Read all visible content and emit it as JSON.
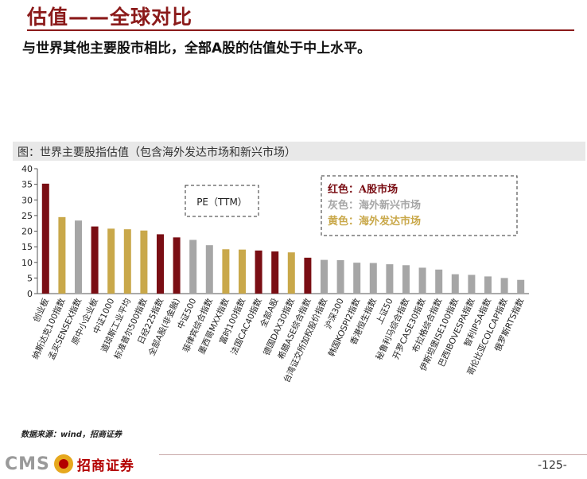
{
  "page": {
    "title": "估值——全球对比",
    "subtitle": "与世界其他主要股市相比，全部A股的估值处于中上水平。",
    "source": "数据来源：wind，招商证券",
    "page_number": "-125-",
    "logo_text": "CMS",
    "logo_name": "招商证券"
  },
  "colors": {
    "title": "#8B1A1A",
    "a_share": "#7A0E14",
    "emerging": "#A6A6A6",
    "developed": "#C9A84A"
  },
  "chart_data": {
    "type": "bar",
    "title": "图：世界主要股指估值（包含海外发达市场和新兴市场）",
    "annotation": "PE（TTM）",
    "ylim": [
      0,
      40
    ],
    "yticks": [
      0,
      5,
      10,
      15,
      20,
      25,
      30,
      35,
      40
    ],
    "legend": [
      {
        "label": "红色：A股市场",
        "group": "a_share"
      },
      {
        "label": "灰色：海外新兴市场",
        "group": "emerging"
      },
      {
        "label": "黄色：海外发达市场",
        "group": "developed"
      }
    ],
    "categories": [
      "创业板",
      "纳斯达克100指数",
      "孟买SENSEX指数",
      "原中小企业板",
      "中证1000",
      "道琼斯工业平均",
      "标准普尔500指数",
      "日经225指数",
      "全部A股(非金融)",
      "中证500",
      "菲律宾综合指数",
      "墨西哥MXX指数",
      "富时100指数",
      "法国CAC40指数",
      "全部A股",
      "德国DAX30指数",
      "希腊ASE综合指数",
      "台湾证交所加权股价指数",
      "沪深300",
      "韩国KOSPI2指数",
      "香港恒生指数",
      "上证50",
      "秘鲁利马综合指数",
      "开罗CASE30指数",
      "布拉格综合指数",
      "伊斯坦堡ISE100指数",
      "巴西IBOVESPA指数",
      "智利IPSA指数",
      "哥伦比亚COLCAP指数",
      "俄罗斯RTS指数"
    ],
    "values": [
      35.2,
      24.5,
      23.4,
      21.5,
      20.8,
      20.6,
      20.2,
      19.0,
      18.0,
      17.2,
      15.5,
      14.2,
      14.1,
      13.8,
      13.5,
      13.2,
      11.5,
      10.8,
      10.7,
      9.9,
      9.8,
      9.4,
      9.1,
      8.3,
      7.7,
      6.2,
      6.0,
      5.5,
      5.0,
      4.4
    ],
    "groups": [
      "a_share",
      "developed",
      "emerging",
      "a_share",
      "developed",
      "developed",
      "developed",
      "a_share",
      "a_share",
      "emerging",
      "emerging",
      "developed",
      "developed",
      "a_share",
      "a_share",
      "developed",
      "a_share",
      "emerging",
      "emerging",
      "emerging",
      "emerging",
      "emerging",
      "emerging",
      "emerging",
      "emerging",
      "emerging",
      "emerging",
      "emerging",
      "emerging",
      "emerging"
    ]
  }
}
